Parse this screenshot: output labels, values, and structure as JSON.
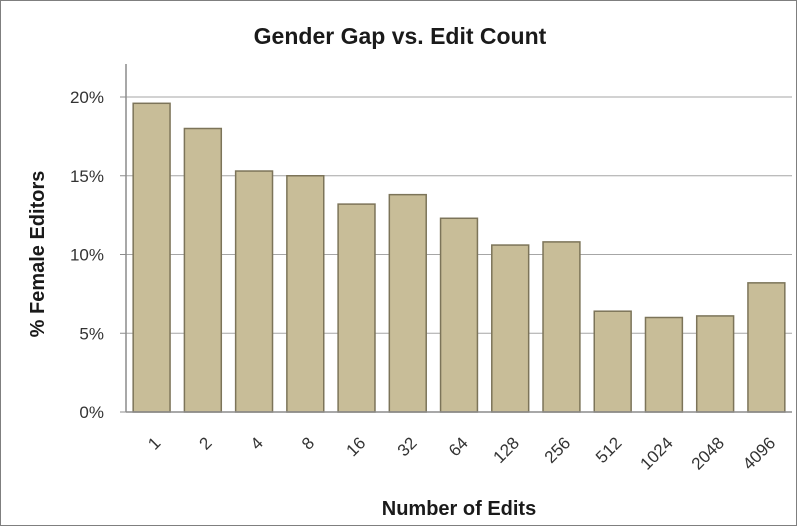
{
  "chart_data": {
    "type": "bar",
    "title": "Gender Gap vs. Edit Count",
    "xlabel": "Number of Edits",
    "ylabel": "% Female Editors",
    "categories": [
      "1",
      "2",
      "4",
      "8",
      "16",
      "32",
      "64",
      "128",
      "256",
      "512",
      "1024",
      "2048",
      "4096"
    ],
    "values": [
      19.6,
      18.0,
      15.3,
      15.0,
      13.2,
      13.8,
      12.3,
      10.6,
      10.8,
      6.4,
      6.0,
      6.1,
      8.2
    ],
    "ylim": [
      0,
      22
    ],
    "yticks": [
      0,
      5,
      10,
      15,
      20
    ],
    "ytick_labels": [
      "0%",
      "5%",
      "10%",
      "15%",
      "20%"
    ],
    "grid": "horizontal",
    "legend": "none",
    "colors": {
      "bar_fill": "#c8bd98",
      "bar_stroke": "#7c7459",
      "grid": "#a6a6a6",
      "axis": "#8c8c8c"
    }
  }
}
